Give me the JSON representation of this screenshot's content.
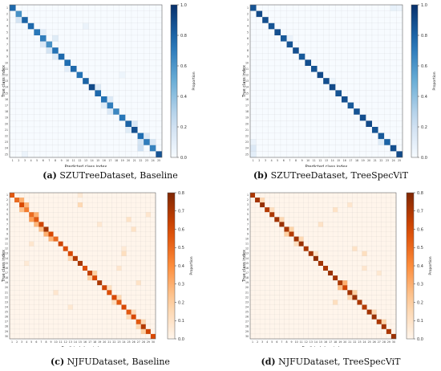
{
  "colors": {
    "blue_max": "#08306b",
    "orange_max": "#7f2704"
  },
  "chart_data": [
    {
      "type": "heatmap",
      "caption": {
        "letter": "(a)",
        "text": "SZUTreeDataset, Baseline"
      },
      "n": 25,
      "colormap": "Blues",
      "vmin": 0,
      "vmax": 1.0,
      "colorbar_label": "Proportion",
      "colorbar_ticks": [
        "0.0",
        "0.2",
        "0.4",
        "0.6",
        "0.8",
        "1.0"
      ],
      "xlabel": "Predicted class index",
      "ylabel": "True class index",
      "tick_labels": [
        "1",
        "2",
        "3",
        "4",
        "5",
        "6",
        "7",
        "8",
        "9",
        "10",
        "11",
        "12",
        "13",
        "14",
        "15",
        "16",
        "17",
        "18",
        "19",
        "20",
        "21",
        "22",
        "23",
        "24",
        "25"
      ],
      "diagonal": [
        0.78,
        0.62,
        0.8,
        0.78,
        0.72,
        0.7,
        0.62,
        0.74,
        0.78,
        0.76,
        0.78,
        0.74,
        0.8,
        0.9,
        0.78,
        0.74,
        0.7,
        0.66,
        0.72,
        0.8,
        0.88,
        0.76,
        0.7,
        0.68,
        0.86
      ],
      "off_diagonal": [
        [
          2,
          1,
          0.18
        ],
        [
          4,
          5,
          0.1
        ],
        [
          5,
          7,
          0.12
        ],
        [
          6,
          5,
          0.14
        ],
        [
          7,
          6,
          0.18
        ],
        [
          8,
          7,
          0.12
        ],
        [
          10,
          9,
          0.1
        ],
        [
          13,
          14,
          0.12
        ],
        [
          15,
          16,
          0.14
        ],
        [
          16,
          15,
          0.12
        ],
        [
          17,
          16,
          0.14
        ],
        [
          19,
          20,
          0.16
        ],
        [
          20,
          19,
          0.12
        ],
        [
          21,
          22,
          0.14
        ],
        [
          22,
          21,
          0.18
        ],
        [
          23,
          21,
          0.2
        ],
        [
          22,
          23,
          0.16
        ],
        [
          24,
          2,
          0.06
        ],
        [
          3,
          12,
          0.06
        ],
        [
          11,
          18,
          0.05
        ]
      ]
    },
    {
      "type": "heatmap",
      "caption": {
        "letter": "(b)",
        "text": "SZUTreeDataset, TreeSpecViT"
      },
      "n": 25,
      "colormap": "Blues",
      "vmin": 0,
      "vmax": 1.0,
      "colorbar_label": "Proportion",
      "colorbar_ticks": [
        "0.0",
        "0.2",
        "0.4",
        "0.6",
        "0.8",
        "1.0"
      ],
      "xlabel": "Predicted class index",
      "ylabel": "True class index",
      "tick_labels": [
        "1",
        "2",
        "3",
        "4",
        "5",
        "6",
        "7",
        "8",
        "9",
        "10",
        "11",
        "12",
        "13",
        "14",
        "15",
        "16",
        "17",
        "18",
        "19",
        "20",
        "21",
        "22",
        "23",
        "24",
        "25"
      ],
      "diagonal": [
        0.86,
        0.9,
        0.88,
        0.86,
        0.88,
        0.84,
        0.86,
        0.88,
        0.84,
        0.88,
        0.86,
        0.9,
        0.88,
        0.9,
        0.86,
        0.88,
        0.84,
        0.86,
        0.88,
        0.9,
        0.86,
        0.84,
        0.8,
        0.88,
        0.9
      ],
      "off_diagonal": [
        [
          0,
          23,
          0.08
        ],
        [
          0,
          24,
          0.06
        ],
        [
          22,
          21,
          0.12
        ],
        [
          23,
          0,
          0.14
        ],
        [
          24,
          0,
          0.1
        ],
        [
          22,
          0,
          0.06
        ],
        [
          5,
          6,
          0.06
        ],
        [
          12,
          13,
          0.05
        ]
      ]
    },
    {
      "type": "heatmap",
      "caption": {
        "letter": "(c)",
        "text": "NJFUDataset, Baseline"
      },
      "n": 30,
      "colormap": "Oranges",
      "vmin": 0,
      "vmax": 0.8,
      "colorbar_label": "Proportion",
      "colorbar_ticks": [
        "0.0",
        "0.1",
        "0.2",
        "0.3",
        "0.4",
        "0.5",
        "0.6",
        "0.7",
        "0.8"
      ],
      "xlabel": "Predicted class index",
      "ylabel": "True class index",
      "tick_labels": [
        "1",
        "2",
        "3",
        "4",
        "5",
        "6",
        "7",
        "8",
        "9",
        "10",
        "11",
        "12",
        "13",
        "14",
        "15",
        "16",
        "17",
        "18",
        "19",
        "20",
        "21",
        "22",
        "23",
        "24",
        "25",
        "26",
        "27",
        "28",
        "29",
        "30"
      ],
      "diagonal": [
        0.55,
        0.5,
        0.6,
        0.45,
        0.5,
        0.55,
        0.62,
        0.72,
        0.6,
        0.5,
        0.62,
        0.58,
        0.6,
        0.68,
        0.7,
        0.58,
        0.65,
        0.6,
        0.7,
        0.62,
        0.58,
        0.6,
        0.55,
        0.6,
        0.55,
        0.6,
        0.55,
        0.68,
        0.62,
        0.6
      ],
      "off_diagonal": [
        [
          1,
          2,
          0.3
        ],
        [
          2,
          3,
          0.28
        ],
        [
          3,
          2,
          0.25
        ],
        [
          4,
          5,
          0.3
        ],
        [
          5,
          4,
          0.35
        ],
        [
          6,
          5,
          0.28
        ],
        [
          7,
          6,
          0.25
        ],
        [
          8,
          7,
          0.3
        ],
        [
          9,
          8,
          0.28
        ],
        [
          2,
          14,
          0.15
        ],
        [
          5,
          24,
          0.1
        ],
        [
          7,
          25,
          0.1
        ],
        [
          12,
          23,
          0.12
        ],
        [
          13,
          12,
          0.15
        ],
        [
          16,
          17,
          0.2
        ],
        [
          17,
          16,
          0.18
        ],
        [
          19,
          20,
          0.12
        ],
        [
          21,
          22,
          0.15
        ],
        [
          22,
          21,
          0.12
        ],
        [
          24,
          25,
          0.14
        ],
        [
          25,
          24,
          0.14
        ],
        [
          26,
          27,
          0.16
        ],
        [
          27,
          26,
          0.15
        ],
        [
          10,
          4,
          0.08
        ],
        [
          15,
          22,
          0.08
        ],
        [
          20,
          9,
          0.08
        ],
        [
          23,
          12,
          0.07
        ],
        [
          18,
          26,
          0.1
        ],
        [
          28,
          27,
          0.2
        ],
        [
          4,
          28,
          0.08
        ],
        [
          11,
          23,
          0.06
        ],
        [
          0,
          14,
          0.06
        ],
        [
          6,
          18,
          0.07
        ],
        [
          14,
          3,
          0.06
        ]
      ]
    },
    {
      "type": "heatmap",
      "caption": {
        "letter": "(d)",
        "text": "NJFUDataset, TreeSpecViT"
      },
      "n": 30,
      "colormap": "Oranges",
      "vmin": 0,
      "vmax": 0.8,
      "colorbar_label": "Proportion",
      "colorbar_ticks": [
        "0.0",
        "0.1",
        "0.2",
        "0.3",
        "0.4",
        "0.5",
        "0.6",
        "0.7",
        "0.8"
      ],
      "xlabel": "Predicted class index",
      "ylabel": "True class index",
      "tick_labels": [
        "1",
        "2",
        "3",
        "4",
        "5",
        "6",
        "7",
        "8",
        "9",
        "10",
        "11",
        "12",
        "13",
        "14",
        "15",
        "16",
        "17",
        "18",
        "19",
        "20",
        "21",
        "22",
        "23",
        "24",
        "25",
        "26",
        "27",
        "28",
        "29",
        "30"
      ],
      "diagonal": [
        0.7,
        0.72,
        0.75,
        0.68,
        0.7,
        0.72,
        0.74,
        0.7,
        0.68,
        0.72,
        0.74,
        0.7,
        0.72,
        0.76,
        0.72,
        0.7,
        0.74,
        0.72,
        0.7,
        0.62,
        0.72,
        0.74,
        0.7,
        0.68,
        0.72,
        0.74,
        0.7,
        0.72,
        0.7,
        0.74
      ],
      "off_diagonal": [
        [
          1,
          2,
          0.15
        ],
        [
          3,
          4,
          0.12
        ],
        [
          5,
          6,
          0.15
        ],
        [
          7,
          8,
          0.18
        ],
        [
          8,
          7,
          0.2
        ],
        [
          9,
          10,
          0.15
        ],
        [
          10,
          9,
          0.12
        ],
        [
          12,
          13,
          0.1
        ],
        [
          18,
          19,
          0.3
        ],
        [
          19,
          18,
          0.25
        ],
        [
          20,
          21,
          0.2
        ],
        [
          21,
          20,
          0.15
        ],
        [
          24,
          25,
          0.15
        ],
        [
          26,
          27,
          0.18
        ],
        [
          3,
          17,
          0.1
        ],
        [
          2,
          20,
          0.08
        ],
        [
          6,
          14,
          0.1
        ],
        [
          12,
          23,
          0.12
        ],
        [
          11,
          21,
          0.1
        ],
        [
          15,
          23,
          0.08
        ],
        [
          22,
          17,
          0.12
        ],
        [
          16,
          26,
          0.07
        ]
      ]
    }
  ]
}
